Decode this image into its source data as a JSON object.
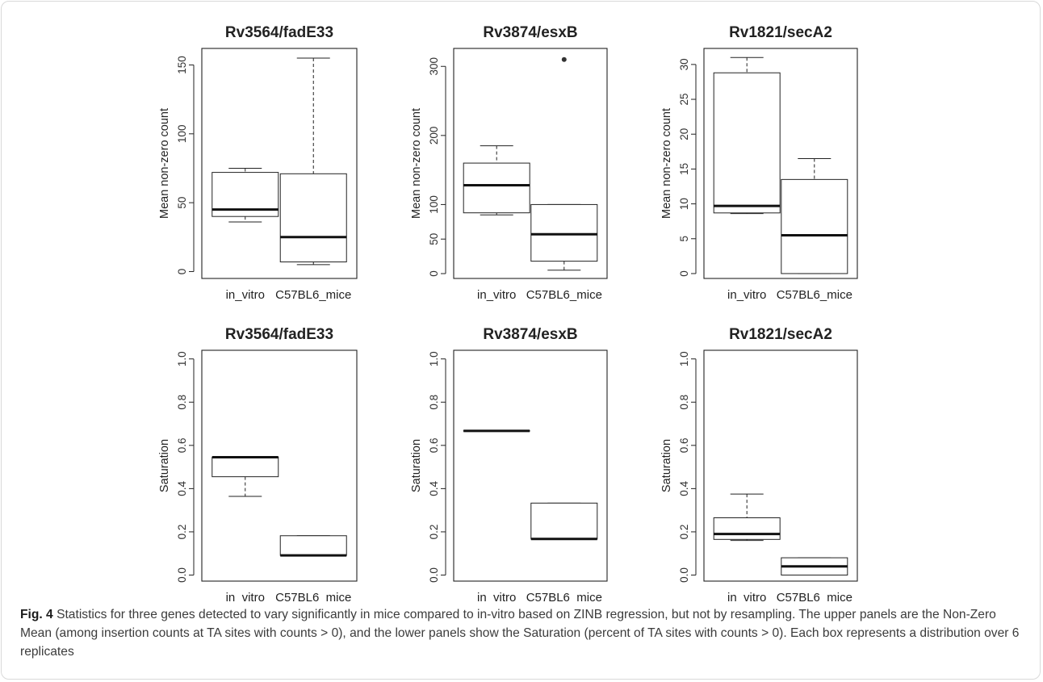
{
  "chart_data": [
    {
      "type": "box",
      "title": "Rv3564/fadE33",
      "ylabel": "Mean non-zero count",
      "ylim": [
        -5,
        162
      ],
      "yticks": [
        0,
        50,
        100,
        150
      ],
      "categories": [
        "in_vitro",
        "C57BL6_mice"
      ],
      "boxes": [
        {
          "category": "in_vitro",
          "min": 36,
          "q1": 40,
          "median": 45,
          "q3": 72,
          "max": 75,
          "outliers": []
        },
        {
          "category": "C57BL6_mice",
          "min": 5,
          "q1": 7,
          "median": 25,
          "q3": 71,
          "max": 155,
          "outliers": []
        }
      ]
    },
    {
      "type": "box",
      "title": "Rv3874/esxB",
      "ylabel": "Mean non-zero count",
      "ylim": [
        -7,
        326
      ],
      "yticks": [
        0,
        50,
        100,
        200,
        300
      ],
      "categories": [
        "in_vitro",
        "C57BL6_mice"
      ],
      "boxes": [
        {
          "category": "in_vitro",
          "min": 85,
          "q1": 88,
          "median": 128,
          "q3": 160,
          "max": 185,
          "outliers": []
        },
        {
          "category": "C57BL6_mice",
          "min": 5,
          "q1": 18,
          "median": 57,
          "q3": 100,
          "max": 100,
          "outliers": [
            310
          ]
        }
      ]
    },
    {
      "type": "box",
      "title": "Rv1821/secA2",
      "ylabel": "Mean non-zero count",
      "ylim": [
        -0.7,
        32.3
      ],
      "yticks": [
        0,
        5,
        10,
        15,
        20,
        25,
        30
      ],
      "categories": [
        "in_vitro",
        "C57BL6_mice"
      ],
      "boxes": [
        {
          "category": "in_vitro",
          "min": 8.6,
          "q1": 8.7,
          "median": 9.7,
          "q3": 28.8,
          "max": 31,
          "outliers": []
        },
        {
          "category": "C57BL6_mice",
          "min": 0,
          "q1": 0,
          "median": 5.5,
          "q3": 13.5,
          "max": 16.5,
          "outliers": []
        }
      ]
    },
    {
      "type": "box",
      "title": "Rv3564/fadE33",
      "ylabel": "Saturation",
      "ylim": [
        -0.028,
        1.04
      ],
      "yticks": [
        "0.0",
        "0.2",
        "0.4",
        "0.6",
        "0.8",
        "1.0"
      ],
      "categories": [
        "in_vitro",
        "C57BL6_mice"
      ],
      "boxes": [
        {
          "category": "in_vitro",
          "min": 0.364,
          "q1": 0.455,
          "median": 0.545,
          "q3": 0.545,
          "max": 0.545,
          "outliers": []
        },
        {
          "category": "C57BL6_mice",
          "min": 0.091,
          "q1": 0.091,
          "median": 0.091,
          "q3": 0.182,
          "max": 0.182,
          "outliers": []
        }
      ]
    },
    {
      "type": "box",
      "title": "Rv3874/esxB",
      "ylabel": "Saturation",
      "ylim": [
        -0.028,
        1.04
      ],
      "yticks": [
        "0.0",
        "0.2",
        "0.4",
        "0.6",
        "0.8",
        "1.0"
      ],
      "categories": [
        "in_vitro",
        "C57BL6_mice"
      ],
      "boxes": [
        {
          "category": "in_vitro",
          "min": 0.667,
          "q1": 0.667,
          "median": 0.667,
          "q3": 0.667,
          "max": 0.667,
          "outliers": []
        },
        {
          "category": "C57BL6_mice",
          "min": 0.167,
          "q1": 0.167,
          "median": 0.167,
          "q3": 0.333,
          "max": 0.333,
          "outliers": []
        }
      ]
    },
    {
      "type": "box",
      "title": "Rv1821/secA2",
      "ylabel": "Saturation",
      "ylim": [
        -0.028,
        1.04
      ],
      "yticks": [
        "0.0",
        "0.2",
        "0.4",
        "0.6",
        "0.8",
        "1.0"
      ],
      "categories": [
        "in_vitro",
        "C57BL6_mice"
      ],
      "boxes": [
        {
          "category": "in_vitro",
          "min": 0.16,
          "q1": 0.165,
          "median": 0.19,
          "q3": 0.265,
          "max": 0.375,
          "outliers": []
        },
        {
          "category": "C57BL6_mice",
          "min": 0,
          "q1": 0,
          "median": 0.04,
          "q3": 0.08,
          "max": 0.08,
          "outliers": []
        }
      ]
    }
  ],
  "caption": {
    "label": "Fig. 4",
    "text": "Statistics for three genes detected to vary significantly in mice compared to in-vitro based on ZINB regression, but not by resampling. The upper panels are the Non-Zero Mean (among insertion counts at TA sites with counts > 0), and the lower panels show the Saturation (percent of TA sites with counts > 0). Each box represents a distribution over 6 replicates"
  }
}
